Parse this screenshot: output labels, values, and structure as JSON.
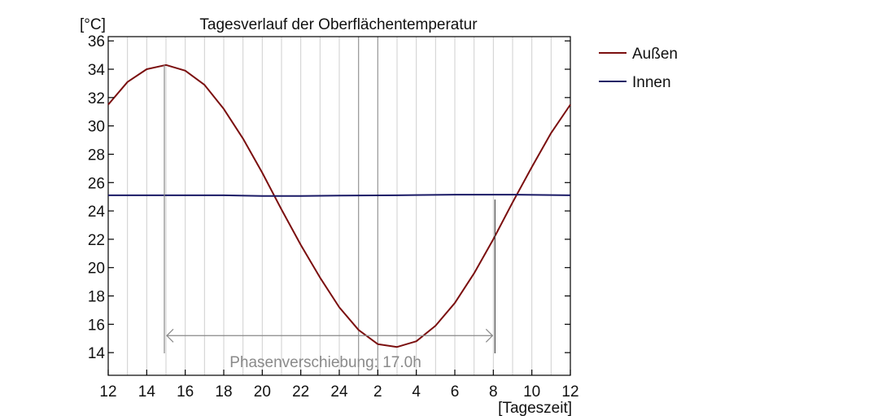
{
  "chart_data": {
    "type": "line",
    "title": "Tagesverlauf der Oberflächentemperatur",
    "ylabel": "[°C]",
    "xlabel": "[Tageszeit]",
    "ylim": [
      12.4,
      36.3
    ],
    "yticks": [
      14,
      16,
      18,
      20,
      22,
      24,
      26,
      28,
      30,
      32,
      34,
      36
    ],
    "x_ticks": [
      {
        "pos": 0,
        "label": "12"
      },
      {
        "pos": 2,
        "label": "14"
      },
      {
        "pos": 4,
        "label": "16"
      },
      {
        "pos": 6,
        "label": "18"
      },
      {
        "pos": 8,
        "label": "20"
      },
      {
        "pos": 10,
        "label": "22"
      },
      {
        "pos": 12,
        "label": "24"
      },
      {
        "pos": 14,
        "label": "2"
      },
      {
        "pos": 16,
        "label": "4"
      },
      {
        "pos": 18,
        "label": "6"
      },
      {
        "pos": 20,
        "label": "8"
      },
      {
        "pos": 22,
        "label": "10"
      },
      {
        "pos": 24,
        "label": "12"
      }
    ],
    "xlim": [
      0,
      24
    ],
    "grid": "vertical",
    "legend_position": "right",
    "series": [
      {
        "name": "Außen",
        "color": "#7b0f0f",
        "x": [
          0,
          1,
          2,
          3,
          4,
          5,
          6,
          7,
          8,
          9,
          10,
          11,
          12,
          13,
          14,
          15,
          16,
          17,
          18,
          19,
          20,
          21,
          22,
          23,
          24
        ],
        "values": [
          31.5,
          33.1,
          34.0,
          34.3,
          33.9,
          32.9,
          31.2,
          29.1,
          26.7,
          24.1,
          21.6,
          19.3,
          17.2,
          15.6,
          14.6,
          14.4,
          14.8,
          15.9,
          17.5,
          19.6,
          22.0,
          24.6,
          27.1,
          29.5,
          31.5
        ]
      },
      {
        "name": "Innen",
        "color": "#1a1a66",
        "x": [
          0,
          3,
          6,
          8,
          10,
          12,
          15,
          18,
          21,
          24
        ],
        "values": [
          25.1,
          25.1,
          25.1,
          25.05,
          25.05,
          25.08,
          25.1,
          25.15,
          25.15,
          25.1
        ]
      }
    ],
    "annotation": {
      "text": "Phasenverschiebung: 17.0h",
      "from_x": 3,
      "to_x": 20,
      "from_top_y": 34.3,
      "to_top_y": 24.8,
      "arrow_y": 15.2
    },
    "highlight_lines_x": [
      13,
      14
    ]
  }
}
